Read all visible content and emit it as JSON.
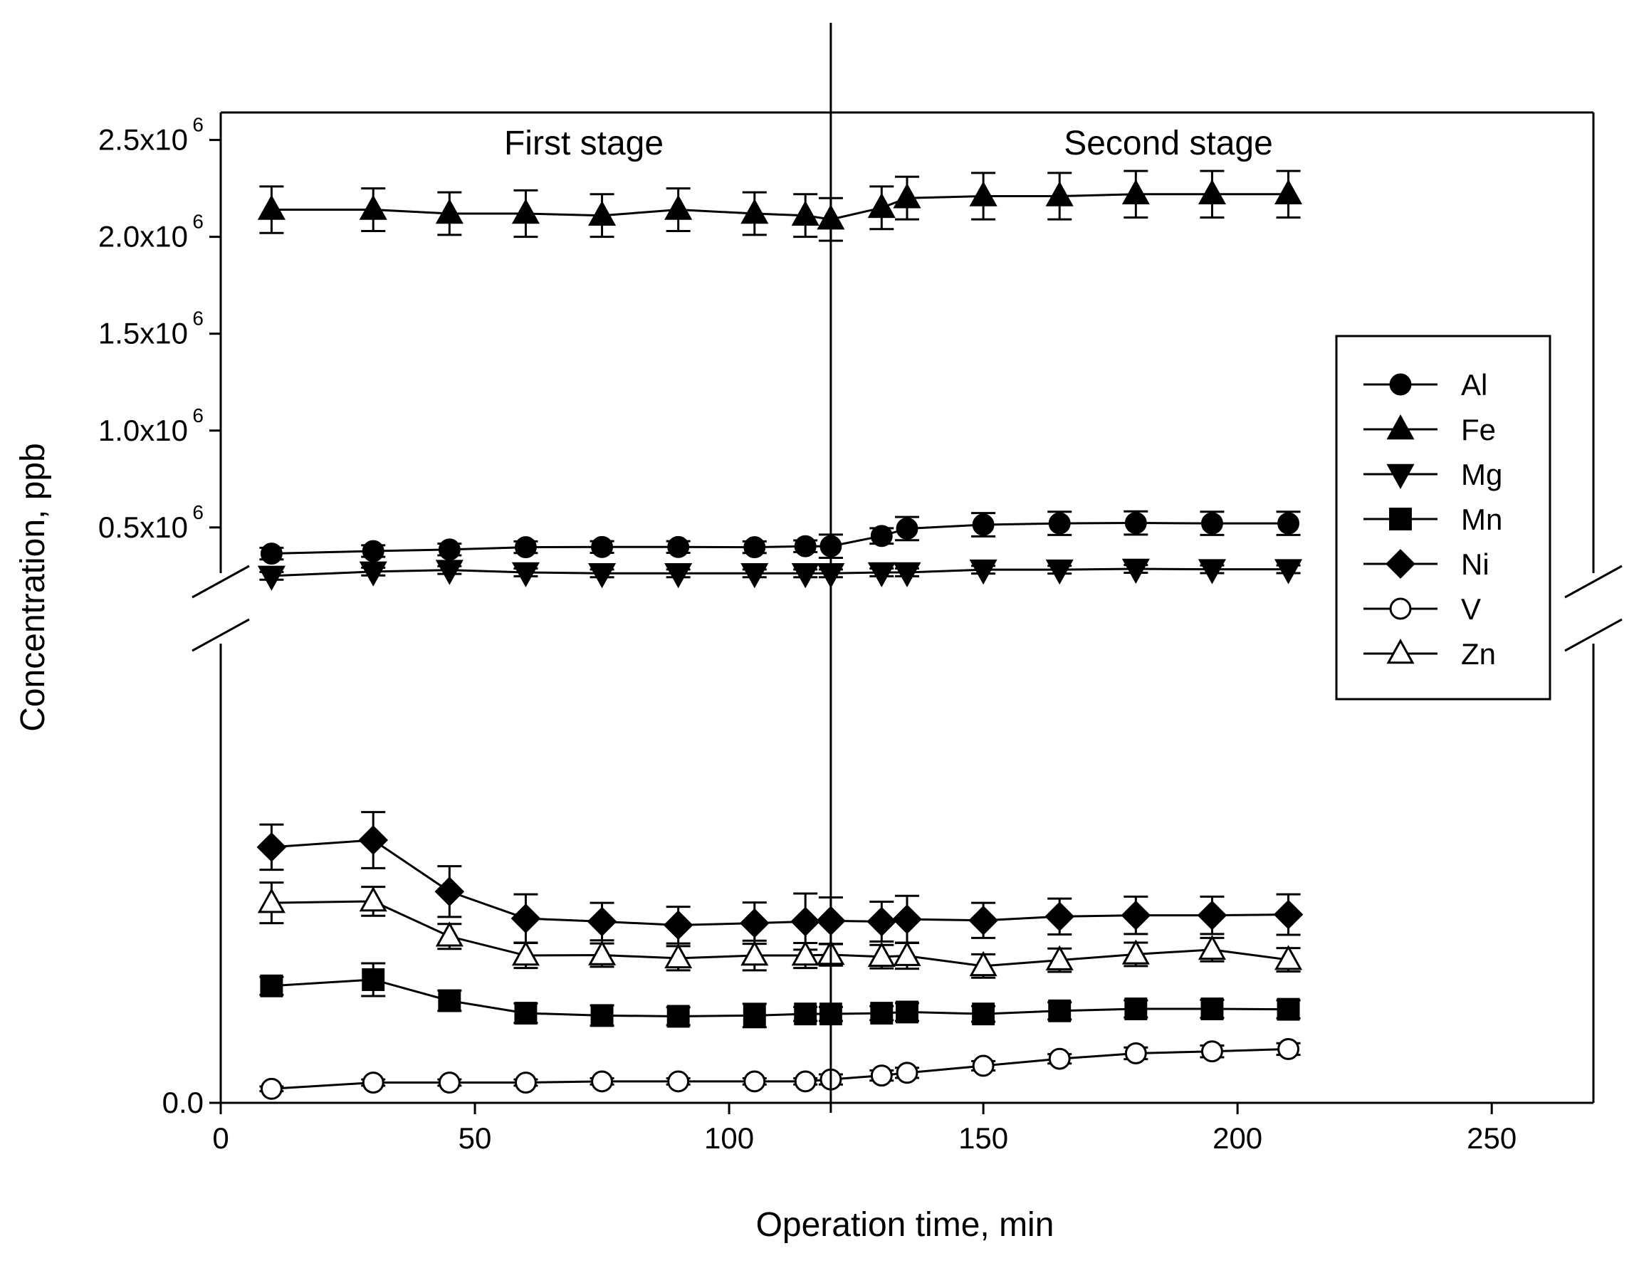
{
  "chart_data": {
    "type": "line",
    "title": "",
    "xlabel": "Operation time, min",
    "ylabel": "Concentration, ppb",
    "xlim": [
      0,
      270
    ],
    "x_ticks": [
      0,
      50,
      100,
      150,
      200,
      250
    ],
    "x_tick_labels": [
      "0",
      "50",
      "100",
      "150",
      "200",
      "250"
    ],
    "y_axis_break": true,
    "y_upper_segment": {
      "ylim": [
        220000,
        2550000
      ],
      "ticks": [
        500000,
        1000000,
        1500000,
        2000000,
        2500000
      ],
      "tick_mantissas": [
        "0.5x10",
        "1.0x10",
        "1.5x10",
        "2.0x10",
        "2.5x10"
      ],
      "tick_exponent": "6"
    },
    "y_lower_segment": {
      "ylim": [
        0,
        12000
      ],
      "ticks": [
        0
      ],
      "tick_labels": [
        "0.0"
      ]
    },
    "divider_x": 120,
    "stage_labels": {
      "first": "First stage",
      "second": "Second stage"
    },
    "legend": {
      "position": "right",
      "entries": [
        "Al",
        "Fe",
        "Mg",
        "Mn",
        "Ni",
        "V",
        "Zn"
      ]
    },
    "x": [
      10,
      30,
      45,
      60,
      75,
      90,
      105,
      115,
      120,
      130,
      135,
      150,
      165,
      180,
      195,
      210
    ],
    "series": [
      {
        "name": "Al",
        "marker": "circle",
        "filled": true,
        "segment": "upper",
        "values": [
          365000,
          378000,
          386000,
          398000,
          399000,
          399000,
          398000,
          403000,
          403000,
          456000,
          494000,
          514000,
          521000,
          523000,
          521000,
          521000
        ],
        "errors": [
          30000,
          30000,
          30000,
          30000,
          30000,
          30000,
          30000,
          30000,
          60000,
          40000,
          60000,
          60000,
          60000,
          60000,
          60000,
          60000
        ]
      },
      {
        "name": "Fe",
        "marker": "triangle-up",
        "filled": true,
        "segment": "upper",
        "values": [
          2140000,
          2140000,
          2120000,
          2120000,
          2110000,
          2140000,
          2120000,
          2110000,
          2090000,
          2150000,
          2200000,
          2210000,
          2210000,
          2220000,
          2220000,
          2220000
        ],
        "errors": [
          120000,
          110000,
          110000,
          120000,
          110000,
          110000,
          110000,
          110000,
          110000,
          110000,
          110000,
          120000,
          120000,
          120000,
          120000,
          120000
        ]
      },
      {
        "name": "Mg",
        "marker": "triangle-down",
        "filled": true,
        "segment": "upper",
        "values": [
          250000,
          272000,
          280000,
          268000,
          263000,
          263000,
          263000,
          263000,
          263000,
          268000,
          268000,
          282000,
          282000,
          286000,
          284000,
          284000
        ],
        "errors": [
          20000,
          20000,
          20000,
          20000,
          20000,
          20000,
          20000,
          20000,
          20000,
          20000,
          20000,
          20000,
          20000,
          20000,
          20000,
          20000
        ]
      },
      {
        "name": "Mn",
        "marker": "square",
        "filled": true,
        "segment": "lower",
        "values": [
          3000,
          3160,
          2620,
          2300,
          2240,
          2220,
          2240,
          2280,
          2280,
          2300,
          2330,
          2280,
          2360,
          2410,
          2410,
          2400
        ],
        "errors": [
          230,
          420,
          260,
          250,
          260,
          230,
          300,
          180,
          180,
          180,
          230,
          200,
          220,
          220,
          230,
          230
        ]
      },
      {
        "name": "Ni",
        "marker": "diamond",
        "filled": true,
        "segment": "lower",
        "values": [
          6560,
          6740,
          5420,
          4730,
          4650,
          4560,
          4610,
          4650,
          4670,
          4650,
          4710,
          4680,
          4780,
          4810,
          4810,
          4830
        ],
        "errors": [
          580,
          720,
          650,
          620,
          480,
          470,
          530,
          720,
          600,
          510,
          600,
          450,
          460,
          480,
          480,
          520
        ]
      },
      {
        "name": "V",
        "marker": "circle",
        "filled": false,
        "segment": "lower",
        "values": [
          360,
          520,
          520,
          520,
          550,
          550,
          550,
          550,
          600,
          700,
          770,
          950,
          1130,
          1270,
          1320,
          1380
        ],
        "errors": [
          60,
          80,
          80,
          80,
          80,
          80,
          80,
          80,
          130,
          130,
          130,
          120,
          120,
          150,
          150,
          150
        ]
      },
      {
        "name": "Zn",
        "marker": "triangle-up",
        "filled": false,
        "segment": "lower",
        "values": [
          5130,
          5170,
          4270,
          3780,
          3790,
          3710,
          3780,
          3780,
          3800,
          3750,
          3770,
          3510,
          3660,
          3810,
          3930,
          3670
        ],
        "errors": [
          520,
          370,
          320,
          320,
          300,
          310,
          380,
          320,
          280,
          300,
          330,
          300,
          300,
          300,
          300,
          300
        ]
      }
    ]
  }
}
